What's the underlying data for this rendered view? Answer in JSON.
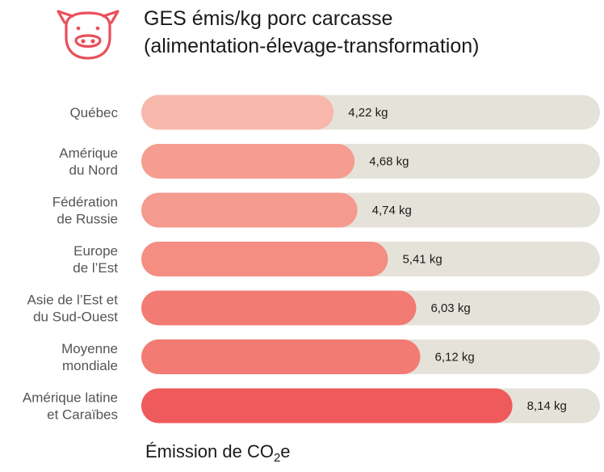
{
  "header": {
    "title": "GES émis/kg porc carcasse",
    "subtitle": "(alimentation-élevage-transformation)",
    "icon": "pig-face-icon",
    "icon_color": "#e8505b"
  },
  "chart_data": {
    "type": "bar",
    "orientation": "horizontal",
    "categories": [
      [
        "Québec"
      ],
      [
        "Amérique",
        "du Nord"
      ],
      [
        "Fédération",
        "de Russie"
      ],
      [
        "Europe",
        "de l’Est"
      ],
      [
        "Asie de l’Est et",
        "du Sud-Ouest"
      ],
      [
        "Moyenne",
        "mondiale"
      ],
      [
        "Amérique latine",
        "et Caraïbes"
      ]
    ],
    "values": [
      4.22,
      4.68,
      4.74,
      5.41,
      6.03,
      6.12,
      8.14
    ],
    "value_labels": [
      "4,22 kg",
      "4,68 kg",
      "4,74 kg",
      "5,41 kg",
      "6,03 kg",
      "6,12 kg",
      "8,14 kg"
    ],
    "unit": "kg",
    "xlim": [
      0,
      10.06
    ],
    "grid": false,
    "colors": {
      "track": "#e5e3d9",
      "bars": [
        "#f7b8ab",
        "#f59d90",
        "#f59a8e",
        "#f48d82",
        "#f27b73",
        "#f27b73",
        "#ef5a5c"
      ],
      "text": "#1a1a1a",
      "category_text": "#555555"
    }
  },
  "footer": {
    "label_prefix": "Émission de CO",
    "label_subscript": "2",
    "label_suffix": "e"
  }
}
